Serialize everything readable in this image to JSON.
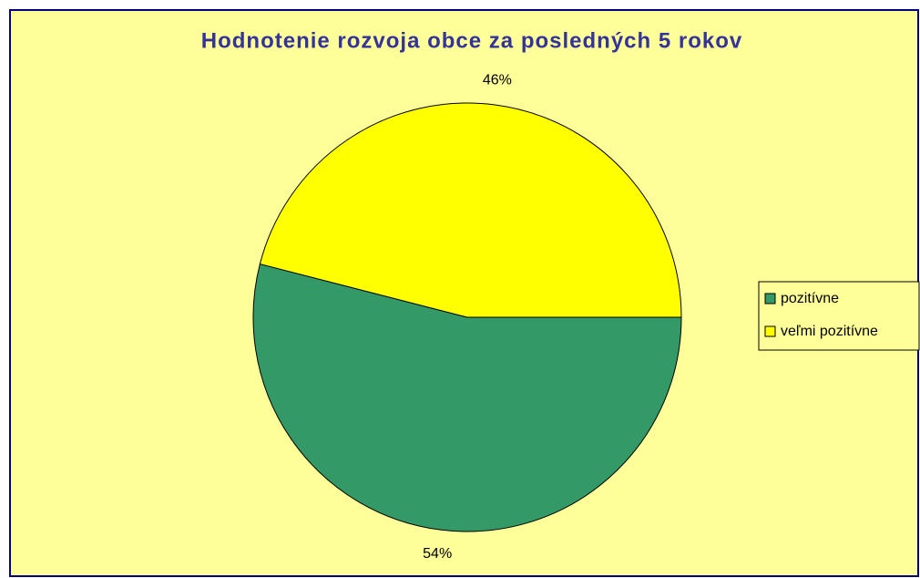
{
  "chart_data": {
    "type": "pie",
    "title": "Hodnotenie rozvoja obce za posledných 5 rokov",
    "categories": [
      "pozitívne",
      "veľmi pozitívne"
    ],
    "values": [
      54,
      46
    ],
    "value_labels": [
      "54%",
      "46%"
    ],
    "colors": [
      "#339966",
      "#ffff00"
    ],
    "legend": "right"
  }
}
